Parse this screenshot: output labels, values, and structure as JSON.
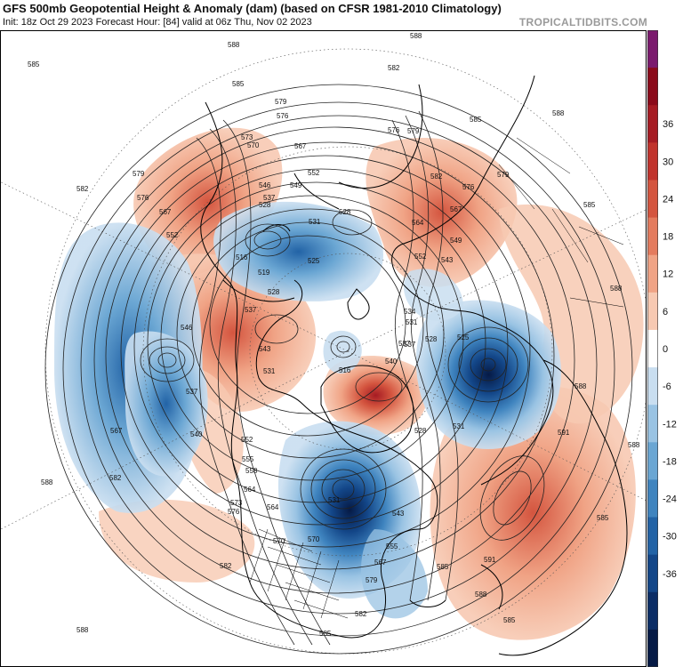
{
  "header": {
    "title": "GFS 500mb Geopotential Height & Anomaly (dam) (based on CFSR 1981-2010 Climatology)",
    "subtitle": "Init: 18z Oct 29 2023   Forecast Hour: [84]   valid at 06z Thu, Nov 02 2023",
    "source": "TROPICALTIDBITS.COM"
  },
  "colorbar": {
    "ticks": [
      "36",
      "30",
      "24",
      "18",
      "12",
      "6",
      "0",
      "-6",
      "-12",
      "-18",
      "-24",
      "-30",
      "-36"
    ],
    "colors": [
      "#7b1a6e",
      "#8b0a1a",
      "#a61b23",
      "#c1332c",
      "#d4553f",
      "#e47b5e",
      "#f0a385",
      "#f7c9b2",
      "#ffffff",
      "#c9def0",
      "#99c3e3",
      "#6aa6d3",
      "#3f84bf",
      "#2263a6",
      "#134688",
      "#0b2d66",
      "#061a45"
    ]
  },
  "map": {
    "projection": "north-polar-stereographic",
    "contour_labels": [
      "588",
      "585",
      "582",
      "579",
      "576",
      "573",
      "570",
      "567",
      "564",
      "561",
      "558",
      "555",
      "552",
      "549",
      "546",
      "543",
      "540",
      "537",
      "534",
      "531",
      "528",
      "525",
      "522",
      "519",
      "516",
      "591"
    ],
    "anomaly_centers": [
      {
        "name": "aleutian-low",
        "sign": "negative",
        "anomaly": -18
      },
      {
        "name": "siberian-low",
        "sign": "negative",
        "anomaly": -12
      },
      {
        "name": "hudson-bay-low",
        "sign": "negative",
        "anomaly": -36
      },
      {
        "name": "scandinavian-low",
        "sign": "negative",
        "anomaly": -36
      },
      {
        "name": "greenland-high",
        "sign": "positive",
        "anomaly": 30
      },
      {
        "name": "alaska-ridge",
        "sign": "positive",
        "anomaly": 18
      },
      {
        "name": "atlantic-ridge",
        "sign": "positive",
        "anomaly": 18
      },
      {
        "name": "kara-sea-ridge",
        "sign": "positive",
        "anomaly": 18
      },
      {
        "name": "beaufort-ridge",
        "sign": "positive",
        "anomaly": 12
      }
    ]
  }
}
